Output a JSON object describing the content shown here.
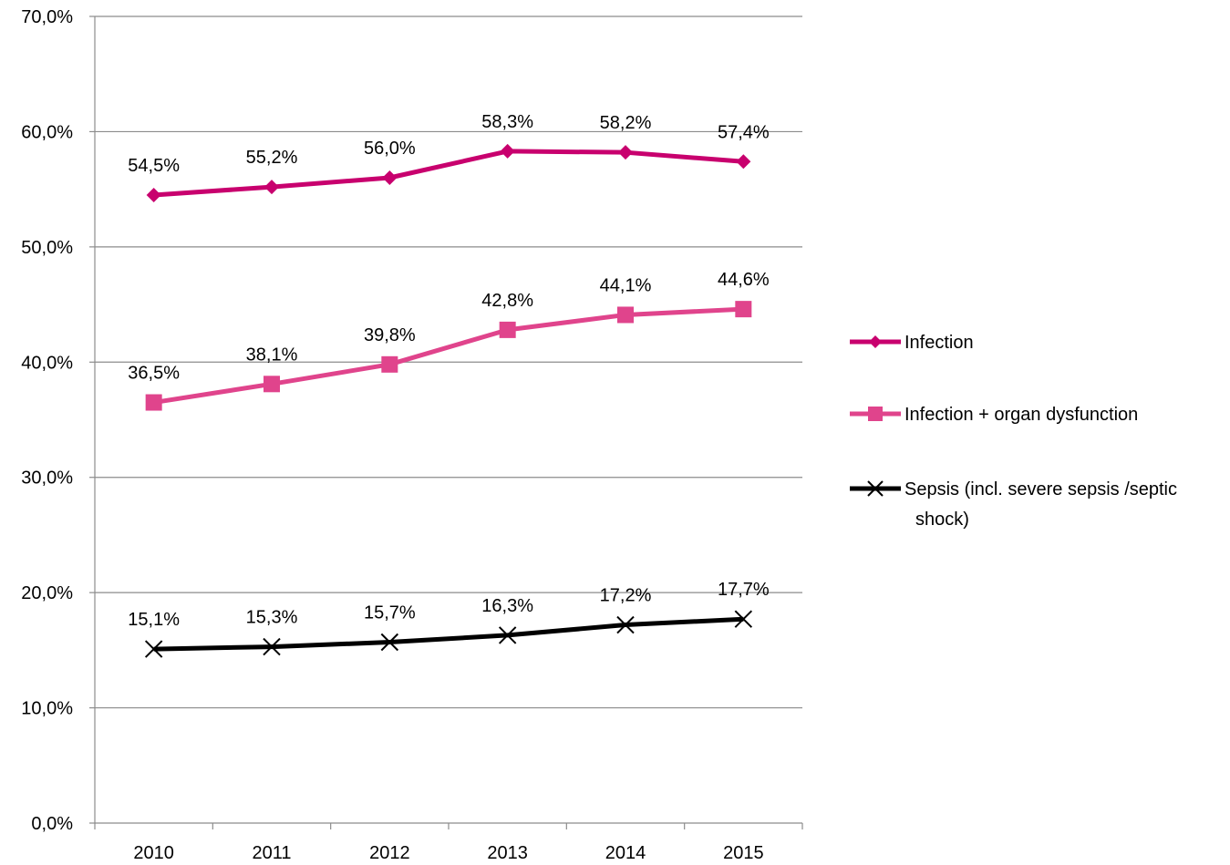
{
  "chart_data": {
    "type": "line",
    "categories": [
      "2010",
      "2011",
      "2012",
      "2013",
      "2014",
      "2015"
    ],
    "ylim": [
      0,
      70
    ],
    "yticks": [
      0,
      10,
      20,
      30,
      40,
      50,
      60,
      70
    ],
    "ytick_labels": [
      "0,0%",
      "10,0%",
      "20,0%",
      "30,0%",
      "40,0%",
      "50,0%",
      "60,0%",
      "70,0%"
    ],
    "grid": true,
    "legend_position": "right",
    "series": [
      {
        "name": "Infection",
        "color": "#c8006e",
        "marker": "diamond",
        "values": [
          54.5,
          55.2,
          56.0,
          58.3,
          58.2,
          57.4
        ],
        "labels": [
          "54,5%",
          "55,2%",
          "56,0%",
          "58,3%",
          "58,2%",
          "57,4%"
        ]
      },
      {
        "name": "Infection + organ dysfunction",
        "color": "#e0448c",
        "marker": "square",
        "values": [
          36.5,
          38.1,
          39.8,
          42.8,
          44.1,
          44.6
        ],
        "labels": [
          "36,5%",
          "38,1%",
          "39,8%",
          "42,8%",
          "44,1%",
          "44,6%"
        ]
      },
      {
        "name": "Sepsis (incl. severe sepsis /septic shock)",
        "name_lines": [
          "Sepsis (incl. severe sepsis /septic",
          "shock)"
        ],
        "color": "#000000",
        "marker": "x",
        "values": [
          15.1,
          15.3,
          15.7,
          16.3,
          17.2,
          17.7
        ],
        "labels": [
          "15,1%",
          "15,3%",
          "15,7%",
          "16,3%",
          "17,2%",
          "17,7%"
        ]
      }
    ]
  }
}
